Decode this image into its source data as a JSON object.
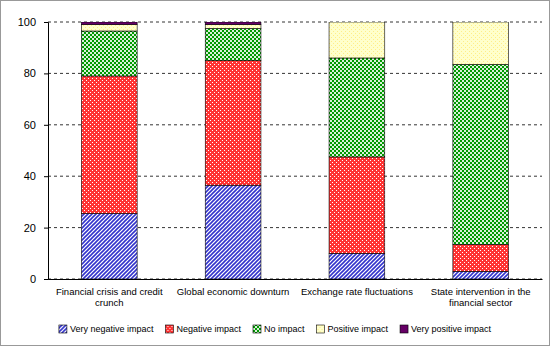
{
  "chart_data": {
    "type": "bar",
    "stacked": true,
    "grid": true,
    "legend": "bottom",
    "categories": [
      "Financial crisis and credit crunch",
      "Global economic downturn",
      "Exchange rate fluctuations",
      "State intervention in the financial sector"
    ],
    "ylim": [
      0,
      100
    ],
    "yticks": [
      0,
      20,
      40,
      60,
      80,
      100
    ],
    "series": [
      {
        "name": "Very negative impact",
        "color": "#3333cc",
        "values": [
          25.5,
          36.5,
          10,
          3
        ]
      },
      {
        "name": "Negative impact",
        "color": "#ff3333",
        "values": [
          53.5,
          48.5,
          37.5,
          10.5
        ]
      },
      {
        "name": "No impact",
        "color": "#009900",
        "values": [
          17.5,
          12.5,
          38.5,
          70
        ]
      },
      {
        "name": "Positive impact",
        "color": "#ffee88",
        "values": [
          2.5,
          1.5,
          14,
          16.5
        ]
      },
      {
        "name": "Very positive impact",
        "color": "#660066",
        "values": [
          1,
          1,
          0,
          0
        ]
      }
    ]
  }
}
